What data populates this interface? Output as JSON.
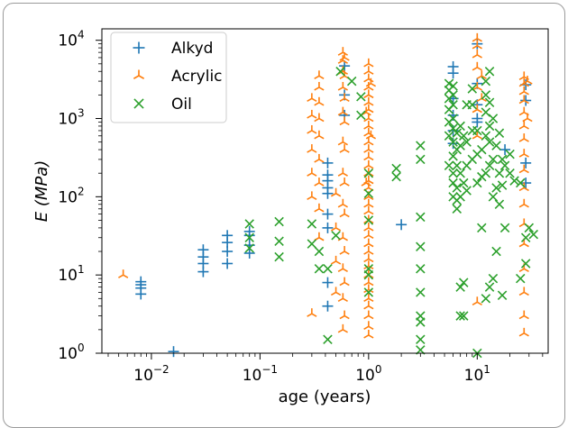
{
  "chart_data": {
    "type": "scatter",
    "xlabel": "age (years)",
    "ylabel": "E (MPa)",
    "xscale": "log",
    "yscale": "log",
    "xlim": [
      0.0035,
      45
    ],
    "ylim": [
      1,
      14000
    ],
    "grid": false,
    "legend_position": "top-left",
    "x_ticks": [
      {
        "value": 0.01,
        "base": "10",
        "exp": "−2"
      },
      {
        "value": 0.1,
        "base": "10",
        "exp": "−1"
      },
      {
        "value": 1,
        "base": "10",
        "exp": "0"
      },
      {
        "value": 10,
        "base": "10",
        "exp": "1"
      }
    ],
    "y_ticks": [
      {
        "value": 1,
        "base": "10",
        "exp": "0"
      },
      {
        "value": 10,
        "base": "10",
        "exp": "1"
      },
      {
        "value": 100,
        "base": "10",
        "exp": "2"
      },
      {
        "value": 1000,
        "base": "10",
        "exp": "3"
      },
      {
        "value": 10000,
        "base": "10",
        "exp": "4"
      }
    ],
    "series": [
      {
        "name": "Alkyd",
        "marker": "plus",
        "color": "#1f77b4",
        "points": [
          [
            0.008,
            7.5
          ],
          [
            0.008,
            6.8
          ],
          [
            0.008,
            5.7
          ],
          [
            0.008,
            8.2
          ],
          [
            0.016,
            1.05
          ],
          [
            0.03,
            11
          ],
          [
            0.03,
            14
          ],
          [
            0.03,
            17
          ],
          [
            0.03,
            21
          ],
          [
            0.05,
            14
          ],
          [
            0.05,
            20
          ],
          [
            0.05,
            26
          ],
          [
            0.05,
            32
          ],
          [
            0.08,
            19
          ],
          [
            0.08,
            24
          ],
          [
            0.08,
            32
          ],
          [
            0.08,
            36
          ],
          [
            0.42,
            4
          ],
          [
            0.42,
            8
          ],
          [
            0.42,
            40
          ],
          [
            0.42,
            60
          ],
          [
            0.42,
            110
          ],
          [
            0.42,
            130
          ],
          [
            0.42,
            160
          ],
          [
            0.42,
            190
          ],
          [
            0.42,
            270
          ],
          [
            0.6,
            1100
          ],
          [
            0.6,
            2000
          ],
          [
            0.6,
            4700
          ],
          [
            2,
            44
          ],
          [
            6,
            3800
          ],
          [
            6,
            4600
          ],
          [
            6,
            1100
          ],
          [
            6,
            1800
          ],
          [
            6,
            480
          ],
          [
            6,
            700
          ],
          [
            10,
            9000
          ],
          [
            10,
            2800
          ],
          [
            10,
            1500
          ],
          [
            10,
            1000
          ],
          [
            10,
            900
          ],
          [
            18,
            400
          ],
          [
            28,
            2700
          ],
          [
            28,
            1700
          ],
          [
            28,
            270
          ],
          [
            28,
            150
          ]
        ]
      },
      {
        "name": "Acrylic",
        "marker": "tri_up",
        "color": "#ff7f0e",
        "points": [
          [
            0.0055,
            10
          ],
          [
            0.3,
            3.2
          ],
          [
            0.3,
            100
          ],
          [
            0.3,
            200
          ],
          [
            0.3,
            400
          ],
          [
            0.3,
            700
          ],
          [
            0.3,
            1100
          ],
          [
            0.3,
            1800
          ],
          [
            0.35,
            30
          ],
          [
            0.35,
            70
          ],
          [
            0.35,
            150
          ],
          [
            0.35,
            300
          ],
          [
            0.35,
            600
          ],
          [
            0.35,
            1000
          ],
          [
            0.35,
            1600
          ],
          [
            0.35,
            2500
          ],
          [
            0.35,
            3500
          ],
          [
            0.5,
            6
          ],
          [
            0.5,
            15
          ],
          [
            0.5,
            40
          ],
          [
            0.5,
            110
          ],
          [
            0.58,
            2
          ],
          [
            0.58,
            5
          ],
          [
            0.58,
            12
          ],
          [
            0.58,
            30
          ],
          [
            0.58,
            80
          ],
          [
            0.58,
            200
          ],
          [
            0.58,
            500
          ],
          [
            0.58,
            1200
          ],
          [
            0.58,
            2500
          ],
          [
            0.58,
            4000
          ],
          [
            0.58,
            5500
          ],
          [
            0.58,
            7000
          ],
          [
            0.6,
            3
          ],
          [
            0.6,
            8
          ],
          [
            0.6,
            20
          ],
          [
            0.6,
            60
          ],
          [
            0.6,
            150
          ],
          [
            0.6,
            400
          ],
          [
            0.6,
            900
          ],
          [
            0.6,
            1800
          ],
          [
            0.6,
            3500
          ],
          [
            0.6,
            6000
          ],
          [
            1,
            1.7
          ],
          [
            1,
            2.2
          ],
          [
            1,
            3
          ],
          [
            1,
            4
          ],
          [
            1,
            5
          ],
          [
            1,
            6.5
          ],
          [
            1,
            8
          ],
          [
            1,
            10
          ],
          [
            1,
            13
          ],
          [
            1,
            16
          ],
          [
            1,
            20
          ],
          [
            1,
            25
          ],
          [
            1,
            32
          ],
          [
            1,
            40
          ],
          [
            1,
            50
          ],
          [
            1,
            65
          ],
          [
            1,
            80
          ],
          [
            1,
            100
          ],
          [
            1,
            130
          ],
          [
            1,
            160
          ],
          [
            1,
            200
          ],
          [
            1,
            250
          ],
          [
            1,
            320
          ],
          [
            1,
            400
          ],
          [
            1,
            500
          ],
          [
            1,
            650
          ],
          [
            1,
            800
          ],
          [
            1,
            1000
          ],
          [
            1,
            1300
          ],
          [
            1,
            1600
          ],
          [
            1,
            2000
          ],
          [
            1,
            2500
          ],
          [
            1,
            3200
          ],
          [
            1,
            4000
          ],
          [
            1,
            5000
          ],
          [
            0.95,
            150
          ],
          [
            0.95,
            1200
          ],
          [
            1.05,
            600
          ],
          [
            1.05,
            2800
          ],
          [
            10,
            4.5
          ],
          [
            10,
            600
          ],
          [
            10,
            1300
          ],
          [
            10,
            2500
          ],
          [
            10,
            4500
          ],
          [
            10,
            6500
          ],
          [
            10,
            8500
          ],
          [
            10,
            10500
          ],
          [
            11,
            1800
          ],
          [
            11,
            3500
          ],
          [
            27,
            1.8
          ],
          [
            27,
            3
          ],
          [
            27,
            6
          ],
          [
            27,
            12
          ],
          [
            27,
            25
          ],
          [
            27,
            45
          ],
          [
            27,
            80
          ],
          [
            27,
            130
          ],
          [
            27,
            220
          ],
          [
            27,
            350
          ],
          [
            27,
            550
          ],
          [
            27,
            800
          ],
          [
            27,
            1200
          ],
          [
            27,
            1700
          ],
          [
            27,
            2200
          ],
          [
            27,
            2800
          ],
          [
            27,
            3400
          ],
          [
            29,
            1000
          ],
          [
            29,
            3000
          ]
        ]
      },
      {
        "name": "Oil",
        "marker": "x",
        "color": "#2ca02c",
        "points": [
          [
            0.08,
            45
          ],
          [
            0.08,
            30
          ],
          [
            0.08,
            22
          ],
          [
            0.15,
            17
          ],
          [
            0.15,
            27
          ],
          [
            0.15,
            48
          ],
          [
            0.3,
            45
          ],
          [
            0.3,
            25
          ],
          [
            0.35,
            12
          ],
          [
            0.35,
            20
          ],
          [
            0.42,
            1.5
          ],
          [
            0.42,
            12
          ],
          [
            0.5,
            32
          ],
          [
            0.55,
            4000
          ],
          [
            0.7,
            3000
          ],
          [
            0.85,
            1900
          ],
          [
            0.85,
            1100
          ],
          [
            1,
            12
          ],
          [
            1,
            10
          ],
          [
            1,
            6
          ],
          [
            1,
            50
          ],
          [
            1,
            110
          ],
          [
            1,
            200
          ],
          [
            1.8,
            230
          ],
          [
            1.8,
            180
          ],
          [
            3,
            450
          ],
          [
            3,
            300
          ],
          [
            3,
            55
          ],
          [
            3,
            23
          ],
          [
            3,
            12
          ],
          [
            3,
            6
          ],
          [
            3,
            3
          ],
          [
            3,
            2.5
          ],
          [
            3,
            1.5
          ],
          [
            3,
            1.1
          ],
          [
            5.5,
            250
          ],
          [
            5.5,
            600
          ],
          [
            5.5,
            900
          ],
          [
            5.5,
            1300
          ],
          [
            5.5,
            1800
          ],
          [
            5.5,
            2300
          ],
          [
            5.5,
            2800
          ],
          [
            6,
            100
          ],
          [
            6,
            150
          ],
          [
            6,
            200
          ],
          [
            6,
            330
          ],
          [
            6,
            500
          ],
          [
            6,
            750
          ],
          [
            6,
            1000
          ],
          [
            6,
            1500
          ],
          [
            6,
            2000
          ],
          [
            6,
            2600
          ],
          [
            6.5,
            70
          ],
          [
            6.5,
            90
          ],
          [
            6.5,
            130
          ],
          [
            6.5,
            250
          ],
          [
            6.5,
            400
          ],
          [
            6.5,
            650
          ],
          [
            7,
            3
          ],
          [
            7,
            7
          ],
          [
            7,
            100
          ],
          [
            7,
            200
          ],
          [
            7,
            450
          ],
          [
            7,
            800
          ],
          [
            7.5,
            3
          ],
          [
            7.5,
            8
          ],
          [
            7.5,
            150
          ],
          [
            7.5,
            600
          ],
          [
            8,
            120
          ],
          [
            8,
            250
          ],
          [
            8,
            500
          ],
          [
            8,
            1500
          ],
          [
            9,
            300
          ],
          [
            9,
            700
          ],
          [
            9,
            1500
          ],
          [
            9,
            2400
          ],
          [
            10,
            1
          ],
          [
            10,
            150
          ],
          [
            10,
            350
          ],
          [
            10,
            700
          ],
          [
            11,
            40
          ],
          [
            11,
            180
          ],
          [
            11,
            400
          ],
          [
            12,
            5
          ],
          [
            12,
            200
          ],
          [
            12,
            600
          ],
          [
            12,
            1200
          ],
          [
            12,
            2000
          ],
          [
            12,
            3000
          ],
          [
            13,
            7
          ],
          [
            13,
            250
          ],
          [
            13,
            500
          ],
          [
            13,
            800
          ],
          [
            13,
            1600
          ],
          [
            13,
            4000
          ],
          [
            14,
            9
          ],
          [
            14,
            100
          ],
          [
            14,
            300
          ],
          [
            14,
            1000
          ],
          [
            15,
            20
          ],
          [
            15,
            130
          ],
          [
            15,
            450
          ],
          [
            16,
            80
          ],
          [
            16,
            200
          ],
          [
            16,
            650
          ],
          [
            17,
            5.5
          ],
          [
            17,
            140
          ],
          [
            17,
            300
          ],
          [
            18,
            40
          ],
          [
            18,
            250
          ],
          [
            20,
            200
          ],
          [
            20,
            350
          ],
          [
            22,
            160
          ],
          [
            25,
            9
          ],
          [
            25,
            150
          ],
          [
            28,
            14
          ],
          [
            28,
            30
          ],
          [
            30,
            40
          ],
          [
            33,
            33
          ]
        ]
      }
    ]
  }
}
